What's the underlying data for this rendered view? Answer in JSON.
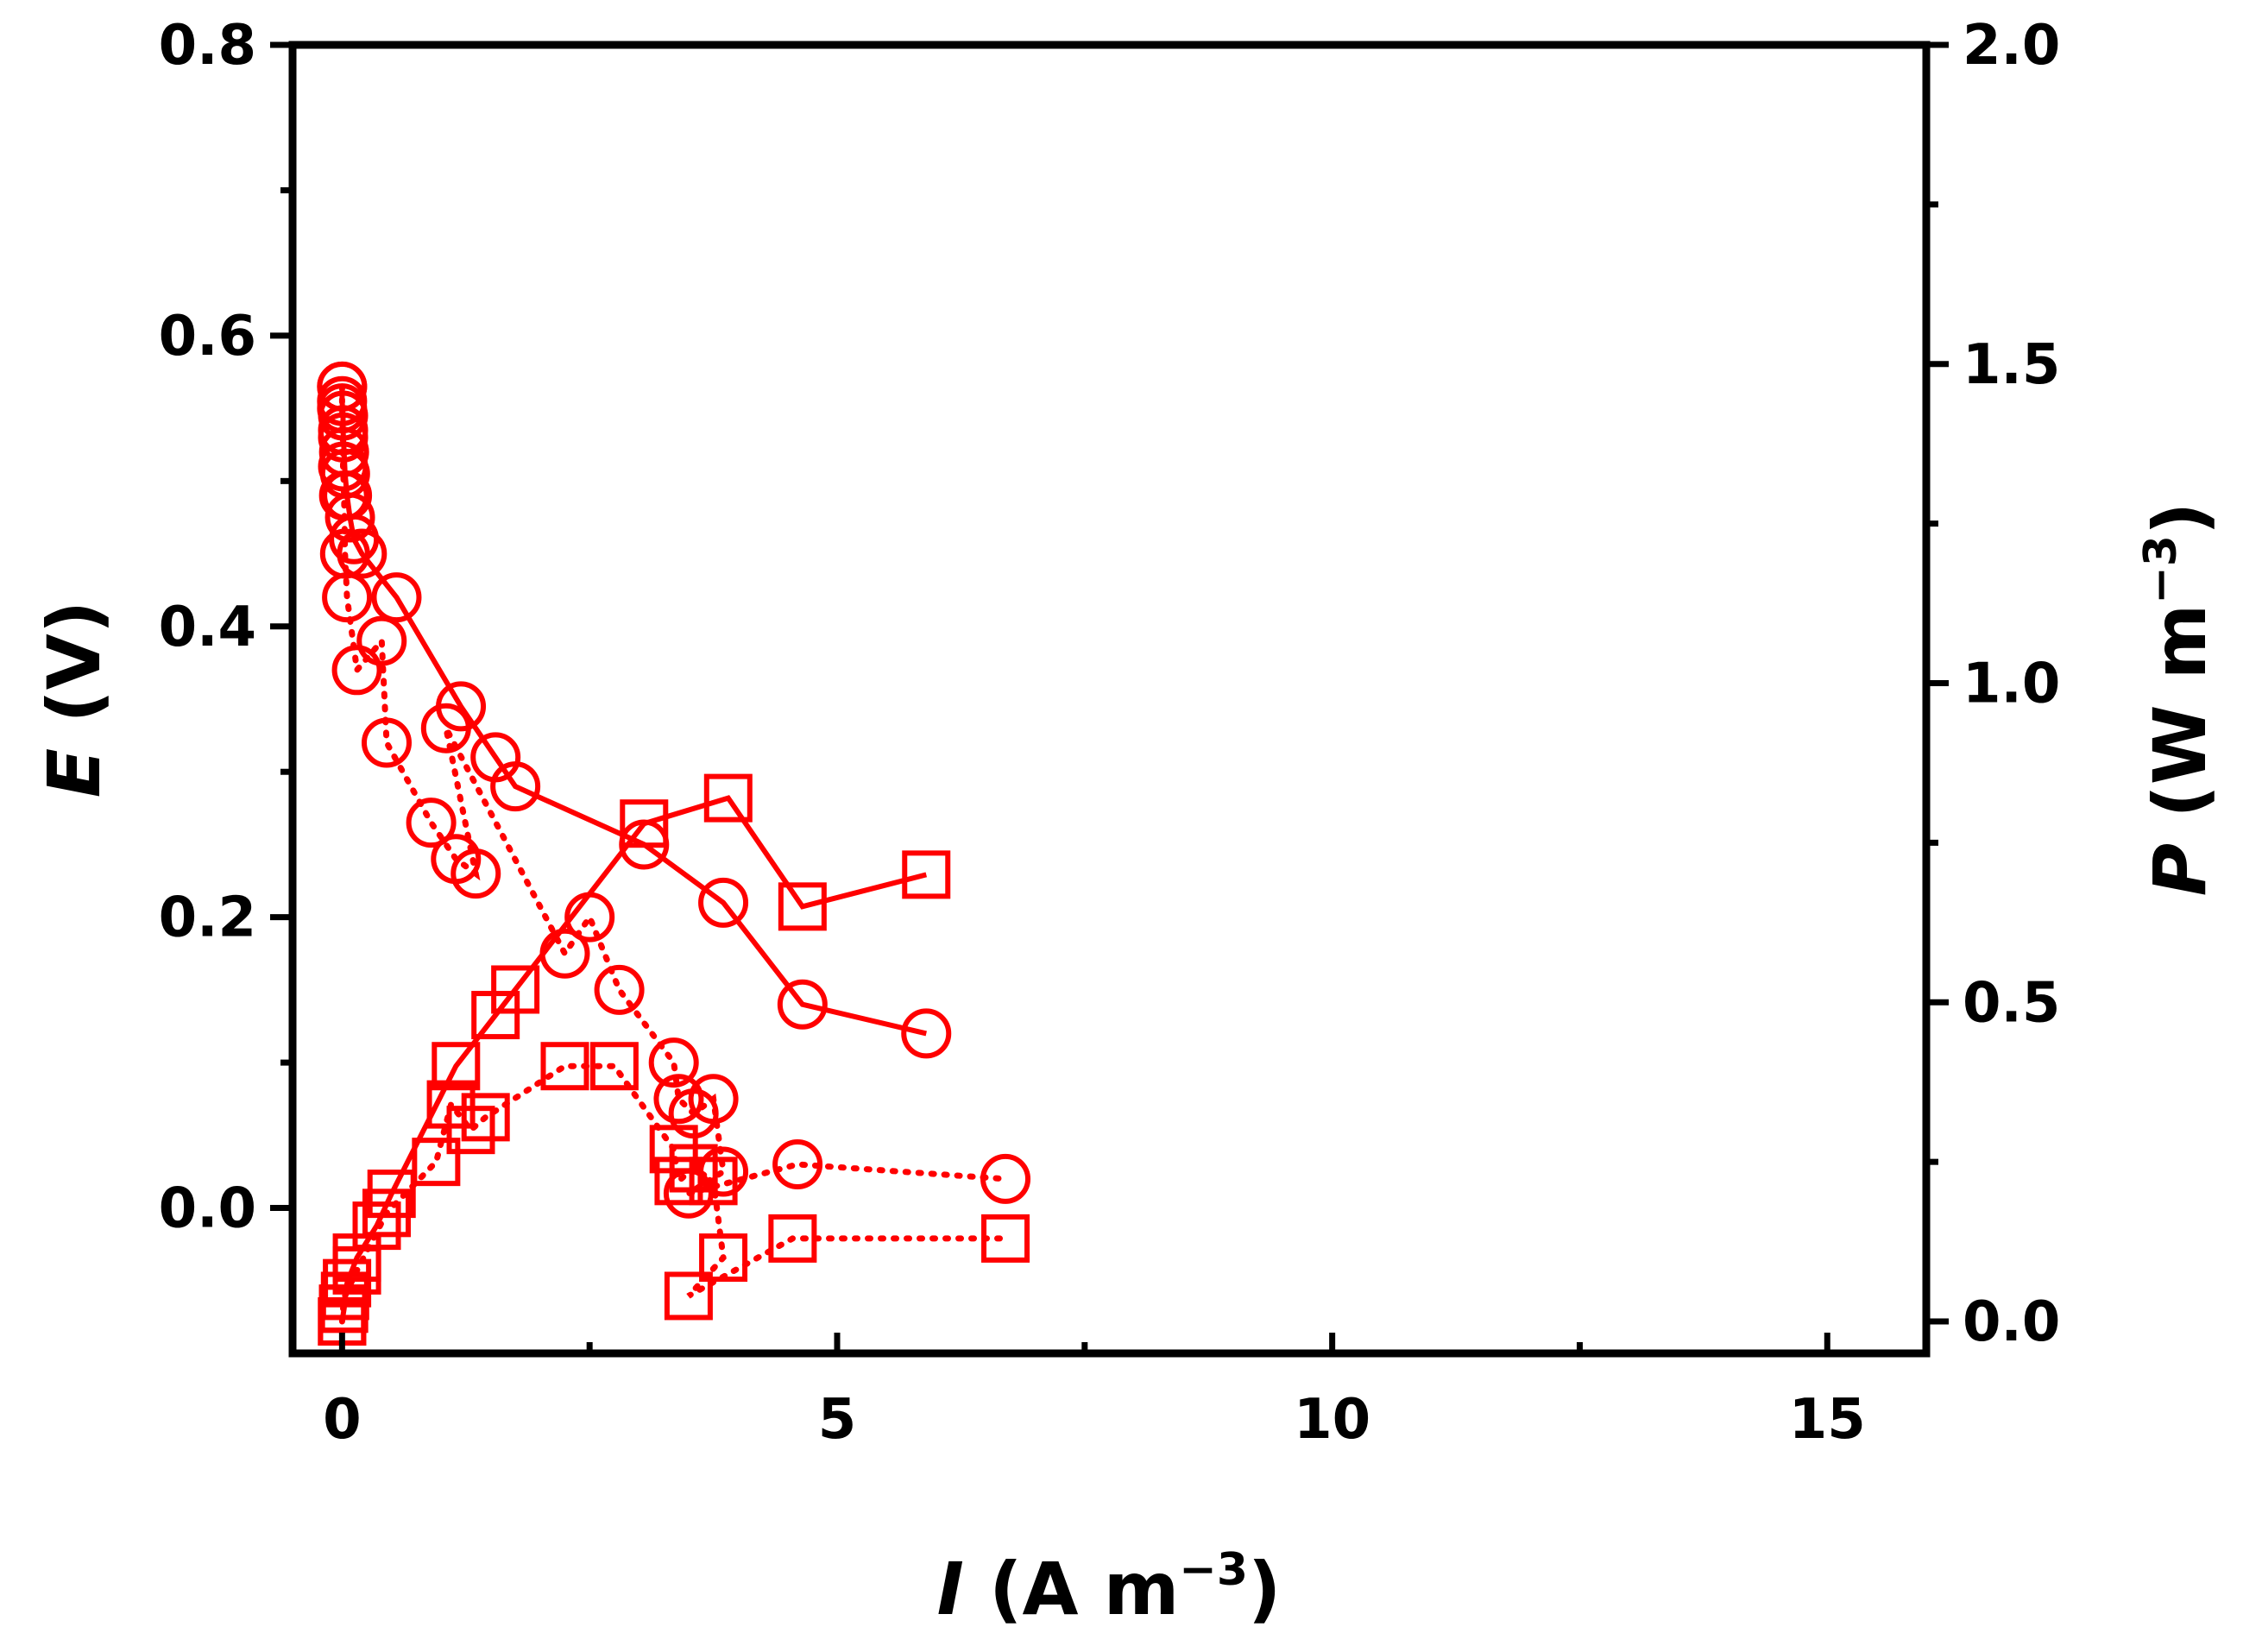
{
  "chart_data": {
    "type": "scatter",
    "title": "",
    "xlabel": {
      "var": "I",
      "rest": " (A m",
      "sup": "−3",
      "close": ")"
    },
    "ylabel_left": {
      "var": "E",
      "rest": " (V)"
    },
    "ylabel_right": {
      "var": "P",
      "rest": " (W m",
      "sup": "−3",
      "close": ")"
    },
    "xlim": [
      -0.5,
      16
    ],
    "ylim_left": [
      -0.1,
      0.8
    ],
    "ylim_right": [
      -0.05,
      2.0
    ],
    "x_ticks": [
      0,
      5,
      10,
      15
    ],
    "x_tick_labels": [
      "0",
      "5",
      "10",
      "15"
    ],
    "y_left_ticks": [
      0.0,
      0.2,
      0.4,
      0.6,
      0.8
    ],
    "y_left_tick_labels": [
      "0.0",
      "0.2",
      "0.4",
      "0.6",
      "0.8"
    ],
    "y_right_ticks": [
      0.0,
      0.5,
      1.0,
      1.5,
      2.0
    ],
    "y_right_tick_labels": [
      "0.0",
      "0.5",
      "1.0",
      "1.5",
      "2.0"
    ],
    "grid": false,
    "legend": "none",
    "color": "#ff0000",
    "series": [
      {
        "axis": "left",
        "marker": "circle",
        "line": "solid",
        "points": [
          [
            0.0,
            0.565
          ],
          [
            0.0,
            0.555
          ],
          [
            0.01,
            0.545
          ],
          [
            0.01,
            0.535
          ],
          [
            0.02,
            0.52
          ],
          [
            0.03,
            0.505
          ],
          [
            0.05,
            0.49
          ],
          [
            0.08,
            0.475
          ],
          [
            0.12,
            0.46
          ],
          [
            0.2,
            0.45
          ],
          [
            0.55,
            0.42
          ],
          [
            1.2,
            0.345
          ],
          [
            1.55,
            0.31
          ],
          [
            1.75,
            0.29
          ],
          [
            3.05,
            0.25
          ],
          [
            3.85,
            0.21
          ],
          [
            4.65,
            0.14
          ],
          [
            5.9,
            0.12
          ]
        ]
      },
      {
        "axis": "left",
        "marker": "circle",
        "line": "dotted",
        "points": [
          [
            0.0,
            0.565
          ],
          [
            0.0,
            0.55
          ],
          [
            0.01,
            0.53
          ],
          [
            0.01,
            0.51
          ],
          [
            0.02,
            0.49
          ],
          [
            0.03,
            0.45
          ],
          [
            0.05,
            0.42
          ],
          [
            0.15,
            0.37
          ],
          [
            0.4,
            0.39
          ],
          [
            0.45,
            0.32
          ],
          [
            0.9,
            0.265
          ],
          [
            1.15,
            0.24
          ],
          [
            1.35,
            0.23
          ],
          [
            1.05,
            0.33
          ],
          [
            2.25,
            0.175
          ],
          [
            2.5,
            0.2
          ],
          [
            2.8,
            0.15
          ],
          [
            3.35,
            0.1
          ],
          [
            3.4,
            0.075
          ],
          [
            3.55,
            0.065
          ],
          [
            3.75,
            0.075
          ],
          [
            3.85,
            0.025
          ],
          [
            3.5,
            0.01
          ],
          [
            4.6,
            0.03
          ],
          [
            6.7,
            0.02
          ]
        ]
      },
      {
        "axis": "right",
        "marker": "square",
        "line": "solid",
        "points": [
          [
            0.0,
            0.0
          ],
          [
            0.02,
            0.02
          ],
          [
            0.05,
            0.06
          ],
          [
            0.15,
            0.1
          ],
          [
            0.35,
            0.15
          ],
          [
            0.5,
            0.2
          ],
          [
            1.15,
            0.4
          ],
          [
            1.55,
            0.48
          ],
          [
            1.75,
            0.52
          ],
          [
            3.05,
            0.78
          ],
          [
            3.9,
            0.82
          ],
          [
            4.65,
            0.65
          ],
          [
            5.9,
            0.7
          ]
        ]
      },
      {
        "axis": "right",
        "marker": "square",
        "line": "dotted",
        "points": [
          [
            0.0,
            0.0
          ],
          [
            0.01,
            0.02
          ],
          [
            0.03,
            0.04
          ],
          [
            0.15,
            0.08
          ],
          [
            0.45,
            0.17
          ],
          [
            0.95,
            0.25
          ],
          [
            1.1,
            0.34
          ],
          [
            1.3,
            0.3
          ],
          [
            1.45,
            0.32
          ],
          [
            2.25,
            0.4
          ],
          [
            2.75,
            0.4
          ],
          [
            3.35,
            0.27
          ],
          [
            3.4,
            0.22
          ],
          [
            3.55,
            0.24
          ],
          [
            3.75,
            0.22
          ],
          [
            3.85,
            0.1
          ],
          [
            3.5,
            0.04
          ],
          [
            4.55,
            0.13
          ],
          [
            6.7,
            0.13
          ]
        ]
      }
    ]
  }
}
